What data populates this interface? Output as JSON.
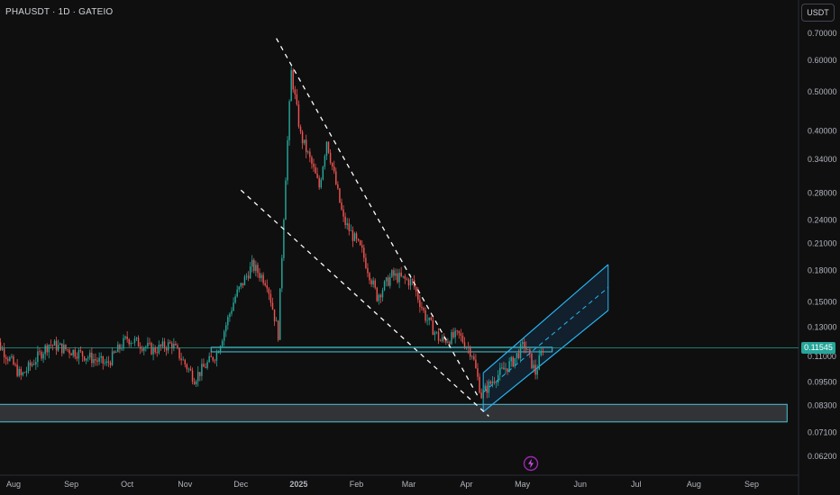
{
  "header": {
    "symbol": "PHAUSDT · 1D · GATEIO"
  },
  "toolbar": {
    "currency_label": "USDT"
  },
  "current_price": {
    "label": "0.11545",
    "value": 0.11545,
    "color": "#26a69a"
  },
  "icons": {
    "event": "lightning-bolt-icon"
  },
  "colors": {
    "background": "#0f0f0f",
    "up": "#26a69a",
    "down": "#ef5350",
    "drawing": "#4dc3d6",
    "trendline": "#ffffff",
    "axis_text": "#b2b5be"
  },
  "chart_data": {
    "type": "candlestick",
    "scale": "log",
    "ylim": [
      0.058,
      0.72
    ],
    "y_ticks": [
      {
        "value": 0.7,
        "label": "0.70000"
      },
      {
        "value": 0.6,
        "label": "0.60000"
      },
      {
        "value": 0.5,
        "label": "0.50000"
      },
      {
        "value": 0.4,
        "label": "0.40000"
      },
      {
        "value": 0.34,
        "label": "0.34000"
      },
      {
        "value": 0.28,
        "label": "0.28000"
      },
      {
        "value": 0.24,
        "label": "0.24000"
      },
      {
        "value": 0.21,
        "label": "0.21000"
      },
      {
        "value": 0.18,
        "label": "0.18000"
      },
      {
        "value": 0.15,
        "label": "0.15000"
      },
      {
        "value": 0.13,
        "label": "0.13000"
      },
      {
        "value": 0.11,
        "label": "0.11000"
      },
      {
        "value": 0.095,
        "label": "0.09500"
      },
      {
        "value": 0.083,
        "label": "0.08300"
      },
      {
        "value": 0.071,
        "label": "0.07100"
      },
      {
        "value": 0.062,
        "label": "0.06200"
      }
    ],
    "x_ticks": [
      {
        "date": "2024-08-01",
        "label": "Aug"
      },
      {
        "date": "2024-09-01",
        "label": "Sep"
      },
      {
        "date": "2024-10-01",
        "label": "Oct"
      },
      {
        "date": "2024-11-01",
        "label": "Nov"
      },
      {
        "date": "2024-12-01",
        "label": "Dec"
      },
      {
        "date": "2025-01-01",
        "label": "2025"
      },
      {
        "date": "2025-02-01",
        "label": "Feb"
      },
      {
        "date": "2025-03-01",
        "label": "Mar"
      },
      {
        "date": "2025-04-01",
        "label": "Apr"
      },
      {
        "date": "2025-05-01",
        "label": "May"
      },
      {
        "date": "2025-06-01",
        "label": "Jun"
      },
      {
        "date": "2025-07-01",
        "label": "Jul"
      },
      {
        "date": "2025-08-01",
        "label": "Aug"
      },
      {
        "date": "2025-09-01",
        "label": "Sep"
      }
    ],
    "price_path": [
      {
        "date": "2024-07-20",
        "price": 0.125
      },
      {
        "date": "2024-07-30",
        "price": 0.108
      },
      {
        "date": "2024-08-05",
        "price": 0.098
      },
      {
        "date": "2024-08-20",
        "price": 0.118
      },
      {
        "date": "2024-09-05",
        "price": 0.112
      },
      {
        "date": "2024-09-20",
        "price": 0.105
      },
      {
        "date": "2024-10-01",
        "price": 0.122
      },
      {
        "date": "2024-10-15",
        "price": 0.114
      },
      {
        "date": "2024-10-25",
        "price": 0.118
      },
      {
        "date": "2024-11-06",
        "price": 0.097
      },
      {
        "date": "2024-11-18",
        "price": 0.112
      },
      {
        "date": "2024-11-28",
        "price": 0.155
      },
      {
        "date": "2024-12-07",
        "price": 0.185
      },
      {
        "date": "2024-12-15",
        "price": 0.168
      },
      {
        "date": "2024-12-21",
        "price": 0.125
      },
      {
        "date": "2024-12-25",
        "price": 0.31
      },
      {
        "date": "2024-12-28",
        "price": 0.56
      },
      {
        "date": "2025-01-02",
        "price": 0.39
      },
      {
        "date": "2025-01-08",
        "price": 0.33
      },
      {
        "date": "2025-01-12",
        "price": 0.29
      },
      {
        "date": "2025-01-16",
        "price": 0.38
      },
      {
        "date": "2025-01-25",
        "price": 0.24
      },
      {
        "date": "2025-02-04",
        "price": 0.2
      },
      {
        "date": "2025-02-12",
        "price": 0.155
      },
      {
        "date": "2025-02-20",
        "price": 0.175
      },
      {
        "date": "2025-03-03",
        "price": 0.168
      },
      {
        "date": "2025-03-10",
        "price": 0.138
      },
      {
        "date": "2025-03-18",
        "price": 0.12
      },
      {
        "date": "2025-03-28",
        "price": 0.124
      },
      {
        "date": "2025-04-04",
        "price": 0.112
      },
      {
        "date": "2025-04-09",
        "price": 0.088
      },
      {
        "date": "2025-04-16",
        "price": 0.097
      },
      {
        "date": "2025-04-26",
        "price": 0.107
      },
      {
        "date": "2025-05-02",
        "price": 0.118
      },
      {
        "date": "2025-05-08",
        "price": 0.1
      },
      {
        "date": "2025-05-12",
        "price": 0.11545
      }
    ],
    "drawings": {
      "support_zone": {
        "start": "2024-07-20",
        "end": "2025-09-20",
        "top": 0.0835,
        "bottom": 0.0755
      },
      "resistance_zone": {
        "start": "2024-11-15",
        "end": "2025-05-17",
        "top": 0.1158,
        "bottom": 0.1128
      },
      "wedge_upper": {
        "start_date": "2024-12-20",
        "start_price": 0.68,
        "end_date": "2025-04-08",
        "end_price": 0.086
      },
      "wedge_lower": {
        "start_date": "2024-12-01",
        "start_price": 0.285,
        "end_date": "2025-04-13",
        "end_price": 0.078
      },
      "channel": {
        "lower_start_date": "2025-04-10",
        "lower_start_price": 0.08,
        "lower_end_date": "2025-06-16",
        "lower_end_price": 0.143,
        "upper_start_date": "2025-04-10",
        "upper_start_price": 0.1,
        "upper_end_date": "2025-06-16",
        "upper_end_price": 0.186
      }
    }
  }
}
